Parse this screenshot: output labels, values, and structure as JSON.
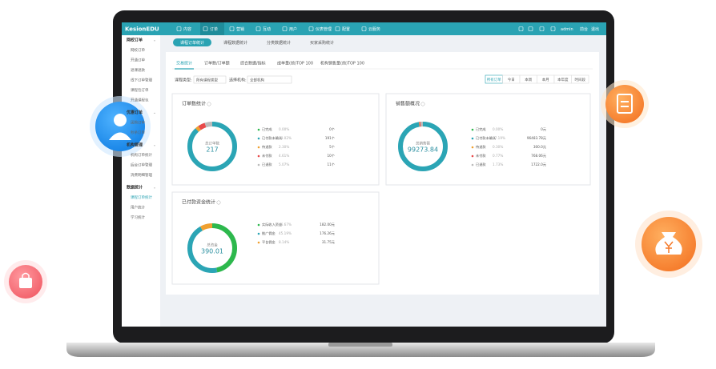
{
  "header": {
    "brand": "KesionEDU",
    "nav": [
      "内容",
      "订单",
      "营销",
      "互动",
      "用户",
      "仪表管理",
      "配置",
      "云服务"
    ],
    "user": "admin",
    "links": [
      "前台",
      "退出"
    ]
  },
  "sidebar": [
    {
      "title": "网校订单",
      "items": [
        "网校订单",
        "开通订单",
        "退课退款",
        "线下订单管理",
        "课程包订单",
        "开通课程包"
      ]
    },
    {
      "title": "优惠订单",
      "items": [
        "团购订单",
        "秒杀订单"
      ]
    },
    {
      "title": "机构管理",
      "items": [
        "机构订单统计",
        "后台订单管理",
        "消费明细管理"
      ]
    },
    {
      "title": "数据统计",
      "items": [
        "课程订单统计",
        "用户统计",
        "学习统计"
      ]
    }
  ],
  "tabs": [
    "课程订单统计",
    "课程数据统计",
    "分类数据统计",
    "买家采购统计"
  ],
  "subtabs": [
    "交易统计",
    "订单数/订单额",
    "综合数据/指标",
    "成单量(前)TOP 100",
    "机构销售量(前)TOP 100"
  ],
  "filters": {
    "course_type_label": "课程类型:",
    "course_type": "所有课程类型",
    "org_label": "选择机构:",
    "org": "全部机构",
    "ranges": [
      "所有订单",
      "今日",
      "本周",
      "本月",
      "本年度",
      "时间段"
    ]
  },
  "cards": [
    {
      "title": "订单数统计",
      "center_label": "总订单数",
      "center_value": "217",
      "rows": [
        {
          "name": "已完成",
          "percent": 0,
          "percent_label": "0.00%",
          "amount": "0个",
          "color": "#2db84d"
        },
        {
          "name": "已付款未确认",
          "percent": 88.02,
          "percent_label": "88.02%",
          "amount": "191个",
          "color": "#2ba5b5"
        },
        {
          "name": "待退款",
          "percent": 2.3,
          "percent_label": "2.30%",
          "amount": "5个",
          "color": "#f0a030"
        },
        {
          "name": "未付款",
          "percent": 4.61,
          "percent_label": "4.61%",
          "amount": "10个",
          "color": "#e84a4a"
        },
        {
          "name": "已退款",
          "percent": 5.07,
          "percent_label": "5.07%",
          "amount": "11个",
          "color": "#bbbbbb"
        }
      ]
    },
    {
      "title": "销售额概况",
      "center_label": "总销售额",
      "center_value": "99273.84",
      "rows": [
        {
          "name": "已完成",
          "percent": 0,
          "percent_label": "0.00%",
          "amount": "0元",
          "color": "#2db84d"
        },
        {
          "name": "已付款未确认",
          "percent": 97.19,
          "percent_label": "97.19%",
          "amount": "96483.78元",
          "color": "#2ba5b5"
        },
        {
          "name": "待退款",
          "percent": 0.3,
          "percent_label": "0.30%",
          "amount": "300.0元",
          "color": "#f0a030"
        },
        {
          "name": "未付款",
          "percent": 0.77,
          "percent_label": "0.77%",
          "amount": "768.06元",
          "color": "#e84a4a"
        },
        {
          "name": "已退款",
          "percent": 1.73,
          "percent_label": "1.73%",
          "amount": "1722.0元",
          "color": "#bbbbbb"
        }
      ]
    },
    {
      "title": "已付款资金统计",
      "center_label": "总资金",
      "center_value": "390.01",
      "rows": [
        {
          "name": "实际收入资金",
          "percent": 46.67,
          "percent_label": "46.67%",
          "amount": "182.00元",
          "color": "#2db84d"
        },
        {
          "name": "推广佣金",
          "percent": 45.19,
          "percent_label": "45.19%",
          "amount": "176.26元",
          "color": "#2ba5b5"
        },
        {
          "name": "平台佣金",
          "percent": 8.14,
          "percent_label": "8.14%",
          "amount": "31.75元",
          "color": "#f0a030"
        }
      ]
    }
  ]
}
